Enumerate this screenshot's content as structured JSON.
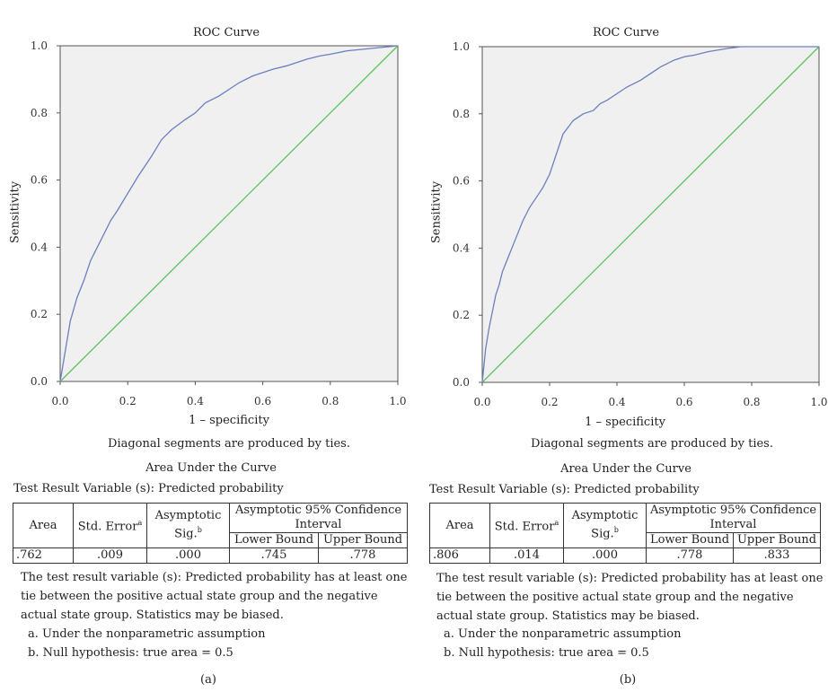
{
  "panels": [
    {
      "id": "a",
      "title": "ROC Curve",
      "xlabel": "1 – specificity",
      "ylabel": "Sensitivity",
      "diag_note": "Diagonal segments are produced by ties.",
      "auc_title": "Area Under the Curve",
      "test_variable": "Test Result Variable (s): Predicted probability",
      "table": {
        "h_area": "Area",
        "h_std": "Std. Error",
        "h_std_sup": "a",
        "h_sig": "Asymptotic Sig.",
        "h_sig_sup": "b",
        "h_ci": "Asymptotic 95% Confidence Interval",
        "h_lower": "Lower Bound",
        "h_upper": "Upper Bound",
        "area": ".762",
        "std_error": ".009",
        "sig": ".000",
        "lower": ".745",
        "upper": ".778"
      },
      "footnote": "The test result variable (s): Predicted probability has at least one tie between the positive actual state group and the negative actual state group. Statistics may be biased.",
      "fn_a": "a. Under the nonparametric assumption",
      "fn_b": "b. Null hypothesis: true area = 0.5",
      "caption": "(a)"
    },
    {
      "id": "b",
      "title": "ROC Curve",
      "xlabel": "1 – specificity",
      "ylabel": "Sensitivity",
      "diag_note": "Diagonal segments are produced by ties.",
      "auc_title": "Area Under the Curve",
      "test_variable": "Test Result Variable (s): Predicted probability",
      "table": {
        "h_area": "Area",
        "h_std": "Std. Error",
        "h_std_sup": "a",
        "h_sig": "Asymptotic Sig.",
        "h_sig_sup": "b",
        "h_ci": "Asymptotic 95% Confidence Interval",
        "h_lower": "Lower Bound",
        "h_upper": "Upper Bound",
        "area": ".806",
        "std_error": ".014",
        "sig": ".000",
        "lower": ".778",
        "upper": ".833"
      },
      "footnote": "The test result variable (s): Predicted probability has at least one tie between the positive actual state group and the negative actual state group. Statistics may be biased.",
      "fn_a": "a. Under the nonparametric assumption",
      "fn_b": "b. Null hypothesis: true area = 0.5",
      "caption": "(b)"
    }
  ],
  "chart_data": [
    {
      "type": "line",
      "title": "ROC Curve",
      "xlabel": "1 – specificity",
      "ylabel": "Sensitivity",
      "xlim": [
        0,
        1
      ],
      "ylim": [
        0,
        1
      ],
      "xticks": [
        "0.0",
        "0.2",
        "0.4",
        "0.6",
        "0.8",
        "1.0"
      ],
      "yticks": [
        "0.0",
        "0.2",
        "0.4",
        "0.6",
        "0.8",
        "1.0"
      ],
      "grid": false,
      "colors": {
        "curve": "#6b7fc0",
        "reference": "#5cc45c",
        "plot_bg": "#f0f0f0"
      },
      "series": [
        {
          "x": [
            0,
            0.01,
            0.02,
            0.03,
            0.05,
            0.07,
            0.09,
            0.12,
            0.15,
            0.17,
            0.2,
            0.23,
            0.27,
            0.3,
            0.33,
            0.37,
            0.4,
            0.43,
            0.47,
            0.5,
            0.53,
            0.57,
            0.6,
            0.63,
            0.67,
            0.7,
            0.73,
            0.77,
            0.8,
            0.85,
            0.9,
            0.95,
            1.0
          ],
          "y": [
            0,
            0.06,
            0.12,
            0.18,
            0.25,
            0.3,
            0.36,
            0.42,
            0.48,
            0.51,
            0.56,
            0.61,
            0.67,
            0.72,
            0.75,
            0.78,
            0.8,
            0.83,
            0.85,
            0.87,
            0.89,
            0.91,
            0.92,
            0.93,
            0.94,
            0.95,
            0.96,
            0.97,
            0.975,
            0.985,
            0.99,
            0.995,
            1.0
          ]
        },
        {
          "x": [
            0,
            1
          ],
          "y": [
            0,
            1
          ]
        }
      ]
    },
    {
      "type": "line",
      "title": "ROC Curve",
      "xlabel": "1 – specificity",
      "ylabel": "Sensitivity",
      "xlim": [
        0,
        1
      ],
      "ylim": [
        0,
        1
      ],
      "xticks": [
        "0.0",
        "0.2",
        "0.4",
        "0.6",
        "0.8",
        "1.0"
      ],
      "yticks": [
        "0.0",
        "0.2",
        "0.4",
        "0.6",
        "0.8",
        "1.0"
      ],
      "grid": false,
      "colors": {
        "curve": "#6b7fc0",
        "reference": "#5cc45c",
        "plot_bg": "#f0f0f0"
      },
      "series": [
        {
          "x": [
            0,
            0.01,
            0.02,
            0.03,
            0.04,
            0.05,
            0.06,
            0.08,
            0.1,
            0.12,
            0.14,
            0.16,
            0.18,
            0.2,
            0.22,
            0.24,
            0.27,
            0.3,
            0.33,
            0.35,
            0.37,
            0.4,
            0.43,
            0.47,
            0.5,
            0.53,
            0.57,
            0.6,
            0.63,
            0.67,
            0.7,
            0.73,
            0.77,
            0.8,
            0.85,
            0.9,
            0.95,
            1.0
          ],
          "y": [
            0,
            0.1,
            0.16,
            0.21,
            0.26,
            0.29,
            0.33,
            0.38,
            0.43,
            0.48,
            0.52,
            0.55,
            0.58,
            0.62,
            0.68,
            0.74,
            0.78,
            0.8,
            0.81,
            0.83,
            0.84,
            0.86,
            0.88,
            0.9,
            0.92,
            0.94,
            0.96,
            0.97,
            0.975,
            0.985,
            0.99,
            0.995,
            1.0,
            1.0,
            1.0,
            1.0,
            1.0,
            1.0
          ]
        },
        {
          "x": [
            0,
            1
          ],
          "y": [
            0,
            1
          ]
        }
      ]
    }
  ]
}
